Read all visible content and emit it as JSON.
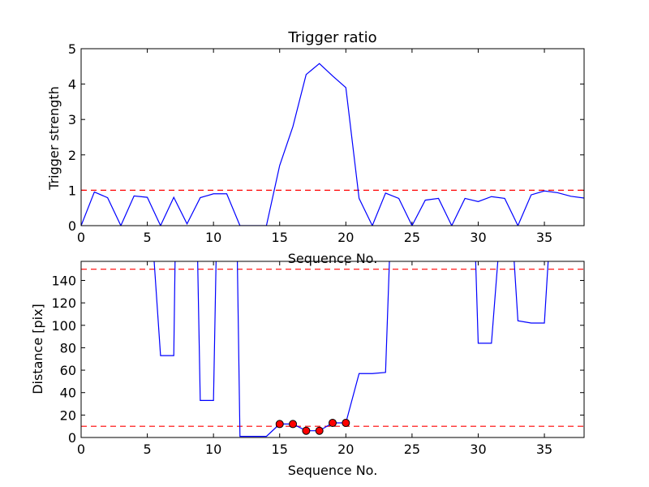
{
  "chart_data": [
    {
      "type": "line",
      "title": "Trigger ratio",
      "xlabel": "Sequence No.",
      "ylabel": "Trigger strength",
      "xlim": [
        0,
        38
      ],
      "ylim": [
        0,
        5
      ],
      "xticks": [
        0,
        5,
        10,
        15,
        20,
        25,
        30,
        35
      ],
      "yticks": [
        0,
        1,
        2,
        3,
        4,
        5
      ],
      "grid": false,
      "series": [
        {
          "name": "trigger strength",
          "color": "#0000ff",
          "x": [
            0,
            1,
            2,
            3,
            4,
            5,
            6,
            7,
            8,
            9,
            10,
            11,
            12,
            13,
            14,
            15,
            16,
            17,
            18,
            19,
            20,
            21,
            22,
            23,
            24,
            25,
            26,
            27,
            28,
            29,
            30,
            31,
            32,
            33,
            34,
            35,
            36,
            37,
            38
          ],
          "y": [
            0,
            0.95,
            0.79,
            0,
            0.84,
            0.8,
            0,
            0.8,
            0.05,
            0.79,
            0.9,
            0.9,
            0,
            0,
            0,
            1.7,
            2.8,
            4.27,
            4.58,
            4.23,
            3.9,
            0.77,
            0,
            0.92,
            0.77,
            0,
            0.72,
            0.77,
            0,
            0.77,
            0.68,
            0.82,
            0.77,
            0,
            0.87,
            0.98,
            0.93,
            0.83,
            0.78
          ]
        }
      ],
      "hlines": [
        {
          "y": 1,
          "color": "#ff0000",
          "style": "dashed"
        }
      ]
    },
    {
      "type": "line",
      "title": "",
      "xlabel": "Sequence No.",
      "ylabel": "Distance [pix]",
      "xlim": [
        0,
        38
      ],
      "ylim": [
        0,
        157
      ],
      "xticks": [
        0,
        5,
        10,
        15,
        20,
        25,
        30,
        35
      ],
      "yticks": [
        0,
        20,
        40,
        60,
        80,
        100,
        120,
        140
      ],
      "grid": false,
      "series": [
        {
          "name": "distance",
          "color": "#0000ff",
          "x": [
            5.5,
            6,
            7,
            7.1,
            8.8,
            9,
            10,
            10.2,
            11.8,
            12,
            13,
            14,
            15,
            16,
            17,
            18,
            19,
            20,
            21,
            22,
            23,
            23.3,
            29.8,
            30,
            31,
            31.5,
            32.7,
            33,
            34,
            35,
            35.3
          ],
          "y": [
            160,
            73,
            73,
            160,
            160,
            33,
            33,
            160,
            160,
            1,
            1,
            1,
            12,
            12,
            6,
            6,
            13,
            13,
            57,
            57,
            58,
            160,
            160,
            84,
            84,
            160,
            160,
            104,
            102,
            102,
            160
          ]
        }
      ],
      "markers": {
        "color": "#ff0000",
        "x": [
          15,
          16,
          17,
          18,
          19,
          20
        ],
        "y": [
          12,
          12,
          6,
          6,
          13,
          13
        ]
      },
      "hlines": [
        {
          "y": 150,
          "color": "#ff0000",
          "style": "dashed"
        },
        {
          "y": 10,
          "color": "#ff0000",
          "style": "dashed"
        }
      ]
    }
  ]
}
